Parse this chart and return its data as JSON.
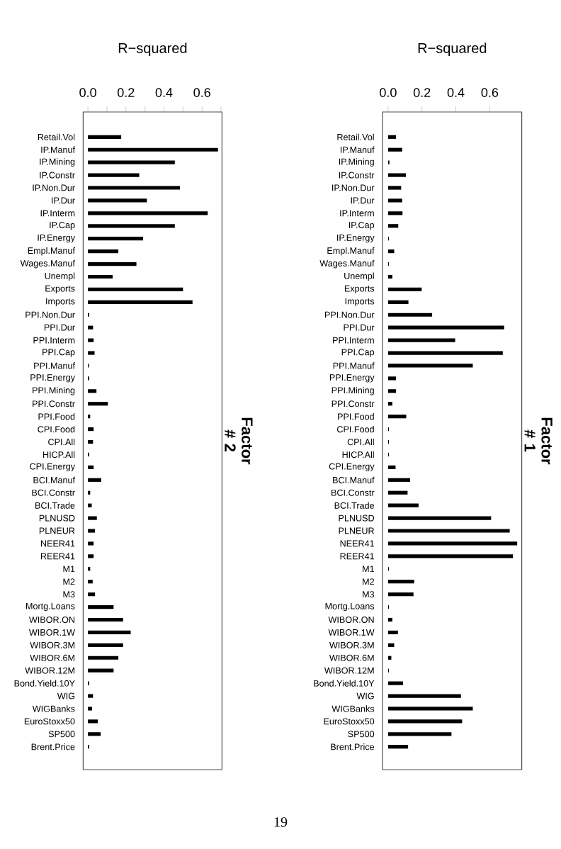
{
  "chart_data": [
    {
      "type": "bar",
      "orientation": "horizontal",
      "title": "R−squared",
      "ylabel": "Factor # 2",
      "color": "#000000",
      "categories": [
        "Retail.Vol",
        "IP.Manuf",
        "IP.Mining",
        "IP.Constr",
        "IP.Non.Dur",
        "IP.Dur",
        "IP.Interm",
        "IP.Cap",
        "IP.Energy",
        "Empl.Manuf",
        "Wages.Manuf",
        "Unempl",
        "Exports",
        "Imports",
        "PPI.Non.Dur",
        "PPI.Dur",
        "PPI.Interm",
        "PPI.Cap",
        "PPI.Manuf",
        "PPI.Energy",
        "PPI.Mining",
        "PPI.Constr",
        "PPI.Food",
        "CPI.Food",
        "CPI.All",
        "HICP.All",
        "CPI.Energy",
        "BCI.Manuf",
        "BCI.Constr",
        "BCI.Trade",
        "PLNUSD",
        "PLNEUR",
        "NEER41",
        "REER41",
        "M1",
        "M2",
        "M3",
        "Mortg.Loans",
        "WIBOR.ON",
        "WIBOR.1W",
        "WIBOR.3M",
        "WIBOR.6M",
        "WIBOR.12M",
        "Bond.Yield.10Y",
        "WIG",
        "WIGBanks",
        "EuroStoxx50",
        "SP500",
        "Brent.Price"
      ],
      "values": [
        0.175,
        0.684,
        0.457,
        0.27,
        0.484,
        0.31,
        0.63,
        0.457,
        0.29,
        0.16,
        0.255,
        0.13,
        0.5,
        0.55,
        0.007,
        0.027,
        0.03,
        0.035,
        0.005,
        0.007,
        0.045,
        0.105,
        0.012,
        0.03,
        0.027,
        0.007,
        0.03,
        0.07,
        0.012,
        0.02,
        0.047,
        0.037,
        0.03,
        0.03,
        0.012,
        0.025,
        0.037,
        0.135,
        0.185,
        0.225,
        0.185,
        0.16,
        0.135,
        0.007,
        0.027,
        0.022,
        0.052,
        0.067,
        0.007
      ],
      "xlim": [
        -0.025,
        0.705
      ],
      "xticks": [
        {
          "value": 0,
          "label": "0.0"
        },
        {
          "value": 0.1,
          "label": null
        },
        {
          "value": 0.2,
          "label": "0.2"
        },
        {
          "value": 0.3,
          "label": null
        },
        {
          "value": 0.4,
          "label": "0.4"
        },
        {
          "value": 0.5,
          "label": null
        },
        {
          "value": 0.6,
          "label": "0.6"
        },
        {
          "value": 0.7,
          "label": null
        }
      ],
      "annotations": [
        "19"
      ]
    },
    {
      "type": "bar",
      "orientation": "horizontal",
      "title": "R−squared",
      "ylabel": "Factor # 1",
      "color": "#000000",
      "categories": [
        "Retail.Vol",
        "IP.Manuf",
        "IP.Mining",
        "IP.Constr",
        "IP.Non.Dur",
        "IP.Dur",
        "IP.Interm",
        "IP.Cap",
        "IP.Energy",
        "Empl.Manuf",
        "Wages.Manuf",
        "Unempl",
        "Exports",
        "Imports",
        "PPI.Non.Dur",
        "PPI.Dur",
        "PPI.Interm",
        "PPI.Cap",
        "PPI.Manuf",
        "PPI.Energy",
        "PPI.Mining",
        "PPI.Constr",
        "PPI.Food",
        "CPI.Food",
        "CPI.All",
        "HICP.All",
        "CPI.Energy",
        "BCI.Manuf",
        "BCI.Constr",
        "BCI.Trade",
        "PLNUSD",
        "PLNEUR",
        "NEER41",
        "REER41",
        "M1",
        "M2",
        "M3",
        "Mortg.Loans",
        "WIBOR.ON",
        "WIBOR.1W",
        "WIBOR.3M",
        "WIBOR.6M",
        "WIBOR.12M",
        "Bond.Yield.10Y",
        "WIG",
        "WIGBanks",
        "EuroStoxx50",
        "SP500",
        "Brent.Price"
      ],
      "values": [
        0.047,
        0.083,
        0.008,
        0.105,
        0.077,
        0.083,
        0.085,
        0.06,
        0.005,
        0.036,
        0.005,
        0.025,
        0.198,
        0.12,
        0.26,
        0.685,
        0.396,
        0.677,
        0.5,
        0.047,
        0.047,
        0.025,
        0.107,
        0.005,
        0.005,
        0.005,
        0.044,
        0.13,
        0.115,
        0.18,
        0.608,
        0.718,
        0.762,
        0.737,
        0.005,
        0.154,
        0.15,
        0.005,
        0.025,
        0.058,
        0.036,
        0.019,
        0.005,
        0.088,
        0.43,
        0.5,
        0.437,
        0.374,
        0.118
      ],
      "xlim": [
        -0.033,
        0.789
      ],
      "xticks": [
        {
          "value": 0,
          "label": "0.0"
        },
        {
          "value": 0.2,
          "label": "0.2"
        },
        {
          "value": 0.4,
          "label": "0.4"
        },
        {
          "value": 0.6,
          "label": "0.6"
        }
      ]
    }
  ]
}
